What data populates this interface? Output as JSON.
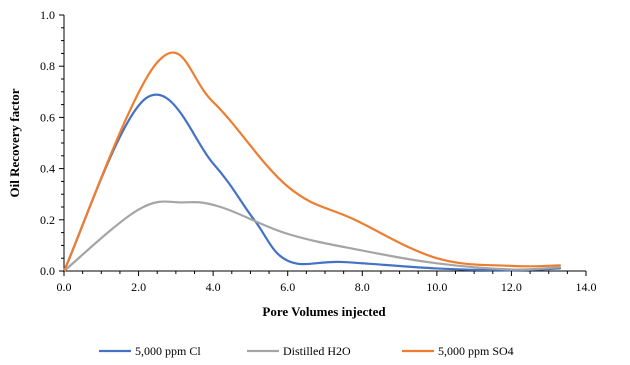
{
  "chart_data": {
    "type": "line",
    "title": "",
    "xlabel": "Pore Volumes injected",
    "ylabel": "Oil Recovery factor",
    "xlim": [
      0,
      14
    ],
    "ylim": [
      0,
      1
    ],
    "x_ticks": [
      "0.0",
      "2.0",
      "4.0",
      "6.0",
      "8.0",
      "10.0",
      "12.0",
      "14.0"
    ],
    "y_ticks": [
      "0.0",
      "0.2",
      "0.4",
      "0.6",
      "0.8",
      "1.0"
    ],
    "grid": false,
    "legend_position": "bottom",
    "series": [
      {
        "name": "5,000 ppm Cl",
        "color": "#4472C4",
        "x": [
          0.0,
          2.2,
          4.0,
          5.1,
          6.0,
          7.5,
          10.0,
          12.0,
          13.3
        ],
        "y": [
          0.0,
          0.675,
          0.42,
          0.2,
          0.04,
          0.035,
          0.01,
          0.003,
          0.01
        ]
      },
      {
        "name": "Distilled H2O",
        "color": "#A5A5A5",
        "x": [
          0.0,
          2.0,
          3.2,
          4.2,
          6.0,
          8.0,
          10.0,
          12.0,
          13.3
        ],
        "y": [
          0.0,
          0.24,
          0.268,
          0.25,
          0.145,
          0.08,
          0.03,
          0.006,
          0.015
        ]
      },
      {
        "name": "5,000 ppm SO4",
        "color": "#ED7D31",
        "x": [
          0.0,
          2.5,
          4.0,
          6.0,
          7.8,
          10.0,
          12.0,
          13.3
        ],
        "y": [
          0.0,
          0.815,
          0.66,
          0.33,
          0.2,
          0.05,
          0.02,
          0.022
        ]
      }
    ]
  }
}
